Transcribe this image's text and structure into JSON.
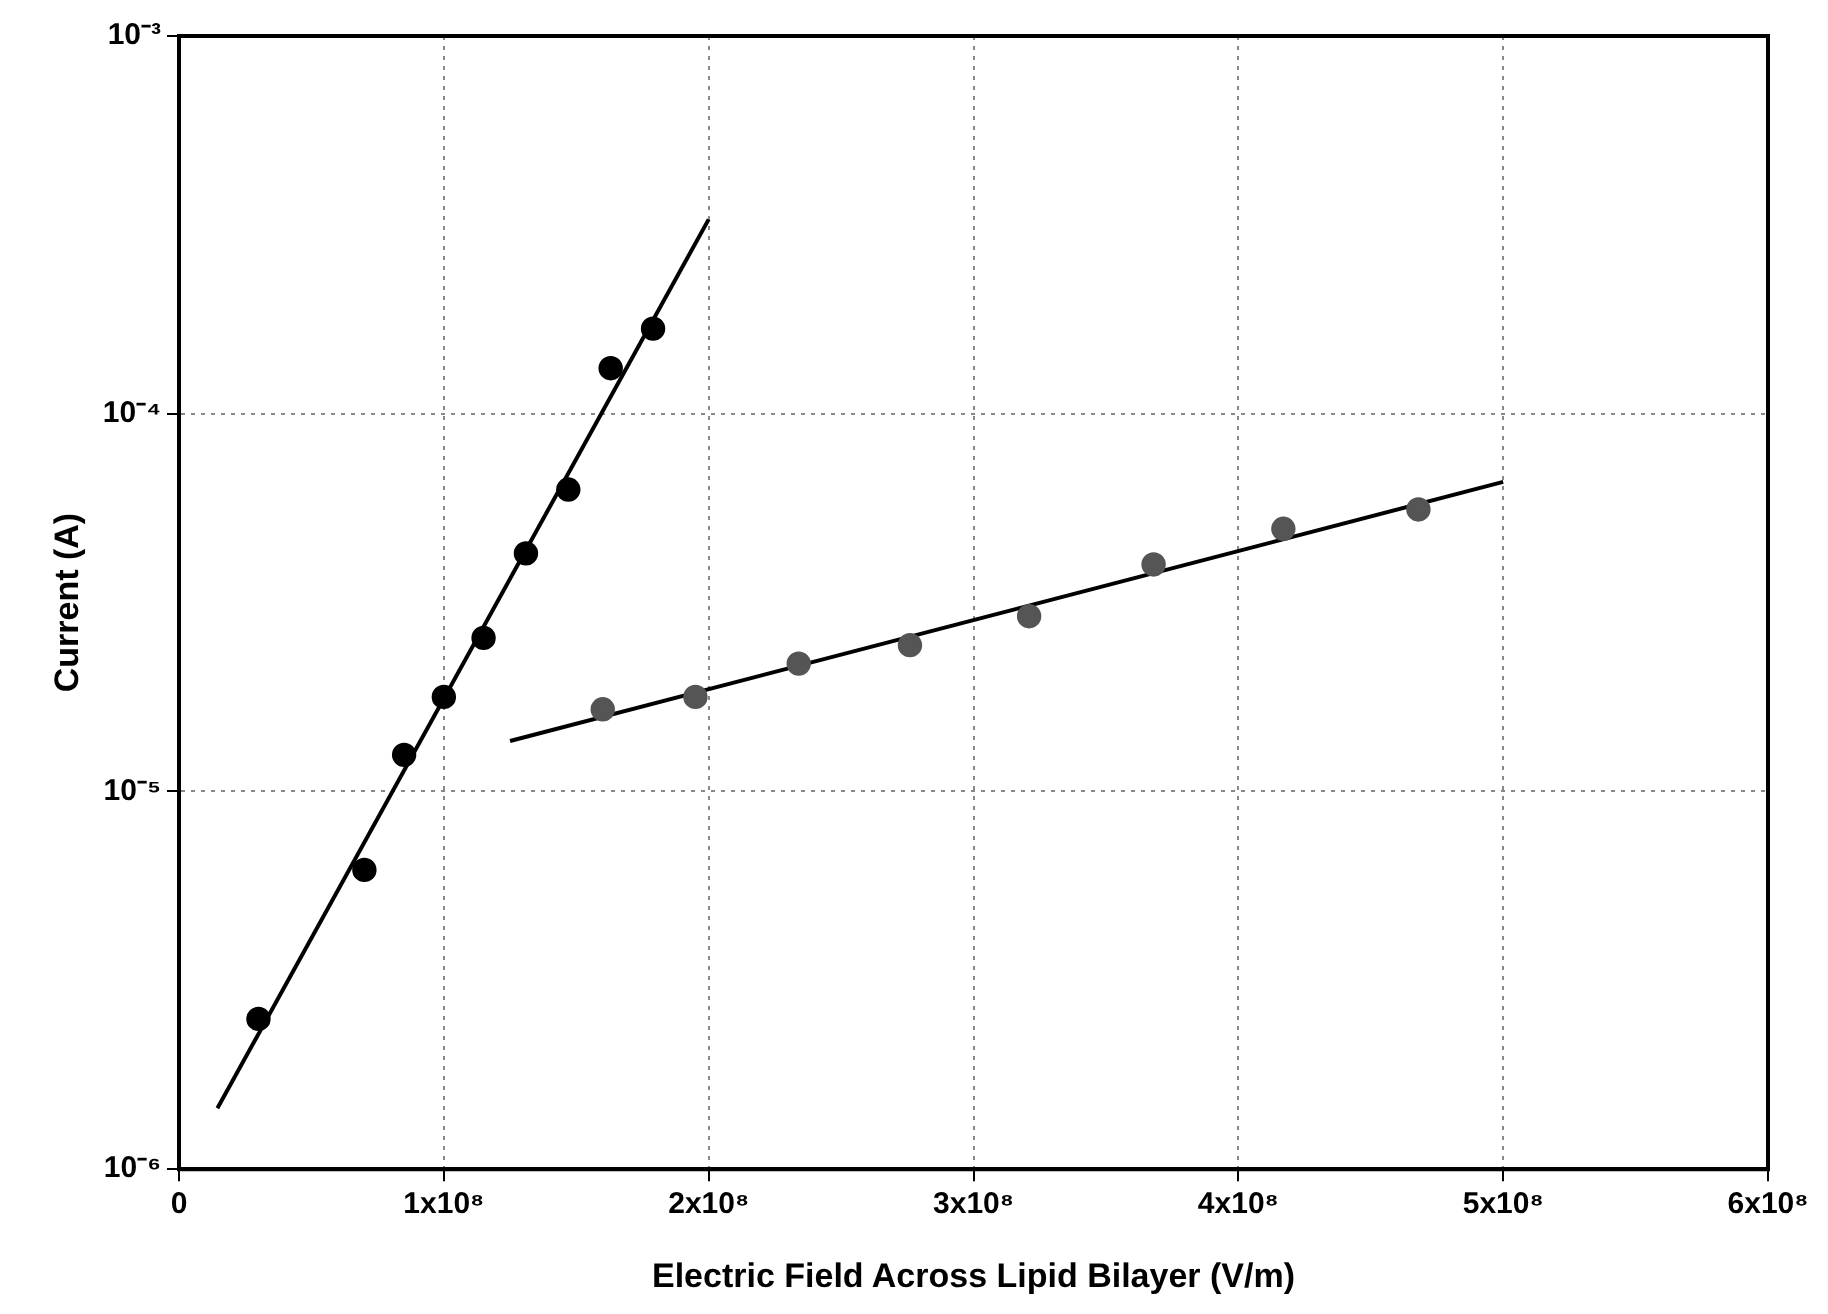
{
  "chart_data": {
    "type": "scatter",
    "xlabel": "Electric Field Across Lipid Bilayer (V/m)",
    "ylabel": "Current (A)",
    "log": "y",
    "grid": true,
    "legend": false,
    "marker": "circle",
    "xlim": [
      0,
      600000000
    ],
    "ylim": [
      1e-06,
      0.001
    ],
    "xticks": [
      0,
      {
        "value": 100000000,
        "label": "1x10⁸"
      },
      {
        "value": 200000000,
        "label": "2x10⁸"
      },
      {
        "value": 300000000,
        "label": "3x10⁸"
      },
      {
        "value": 400000000,
        "label": "4x10⁸"
      },
      {
        "value": 500000000,
        "label": "5x10⁸"
      },
      {
        "value": 600000000,
        "label": "6x10⁸"
      }
    ],
    "yticks": [
      {
        "value": 1e-06,
        "label": "10⁻⁶"
      },
      {
        "value": 1e-05,
        "label": "10⁻⁵"
      },
      {
        "value": 0.0001,
        "label": "10⁻⁴"
      },
      {
        "value": 0.001,
        "label": "10⁻³"
      }
    ],
    "series": [
      {
        "color": "#555555",
        "x": [
          160000000,
          195000000,
          234000000,
          276000000,
          321000000,
          368000000,
          417000000,
          468000000
        ],
        "values": [
          1.65e-05,
          1.78e-05,
          2.18e-05,
          2.44e-05,
          2.91e-05,
          3.99e-05,
          4.96e-05,
          5.58e-05
        ]
      },
      {
        "color": "#000000",
        "x": [
          30000000,
          70000000,
          85000000,
          100000000,
          115000000,
          131000000,
          147000000,
          163000000,
          179000000
        ],
        "values": [
          2.5e-06,
          6.2e-06,
          1.25e-05,
          1.78e-05,
          2.55e-05,
          4.27e-05,
          6.3e-05,
          0.000132,
          0.000168
        ]
      },
      {
        "type": "line",
        "color": "#000000",
        "marker": "none",
        "x": [
          125000000,
          500000000
        ],
        "values": [
          1.36e-05,
          6.6e-05
        ]
      },
      {
        "type": "line",
        "color": "#000000",
        "marker": "none",
        "x": [
          14500000,
          200000000
        ],
        "values": [
          1.45e-06,
          0.000327
        ]
      }
    ]
  }
}
